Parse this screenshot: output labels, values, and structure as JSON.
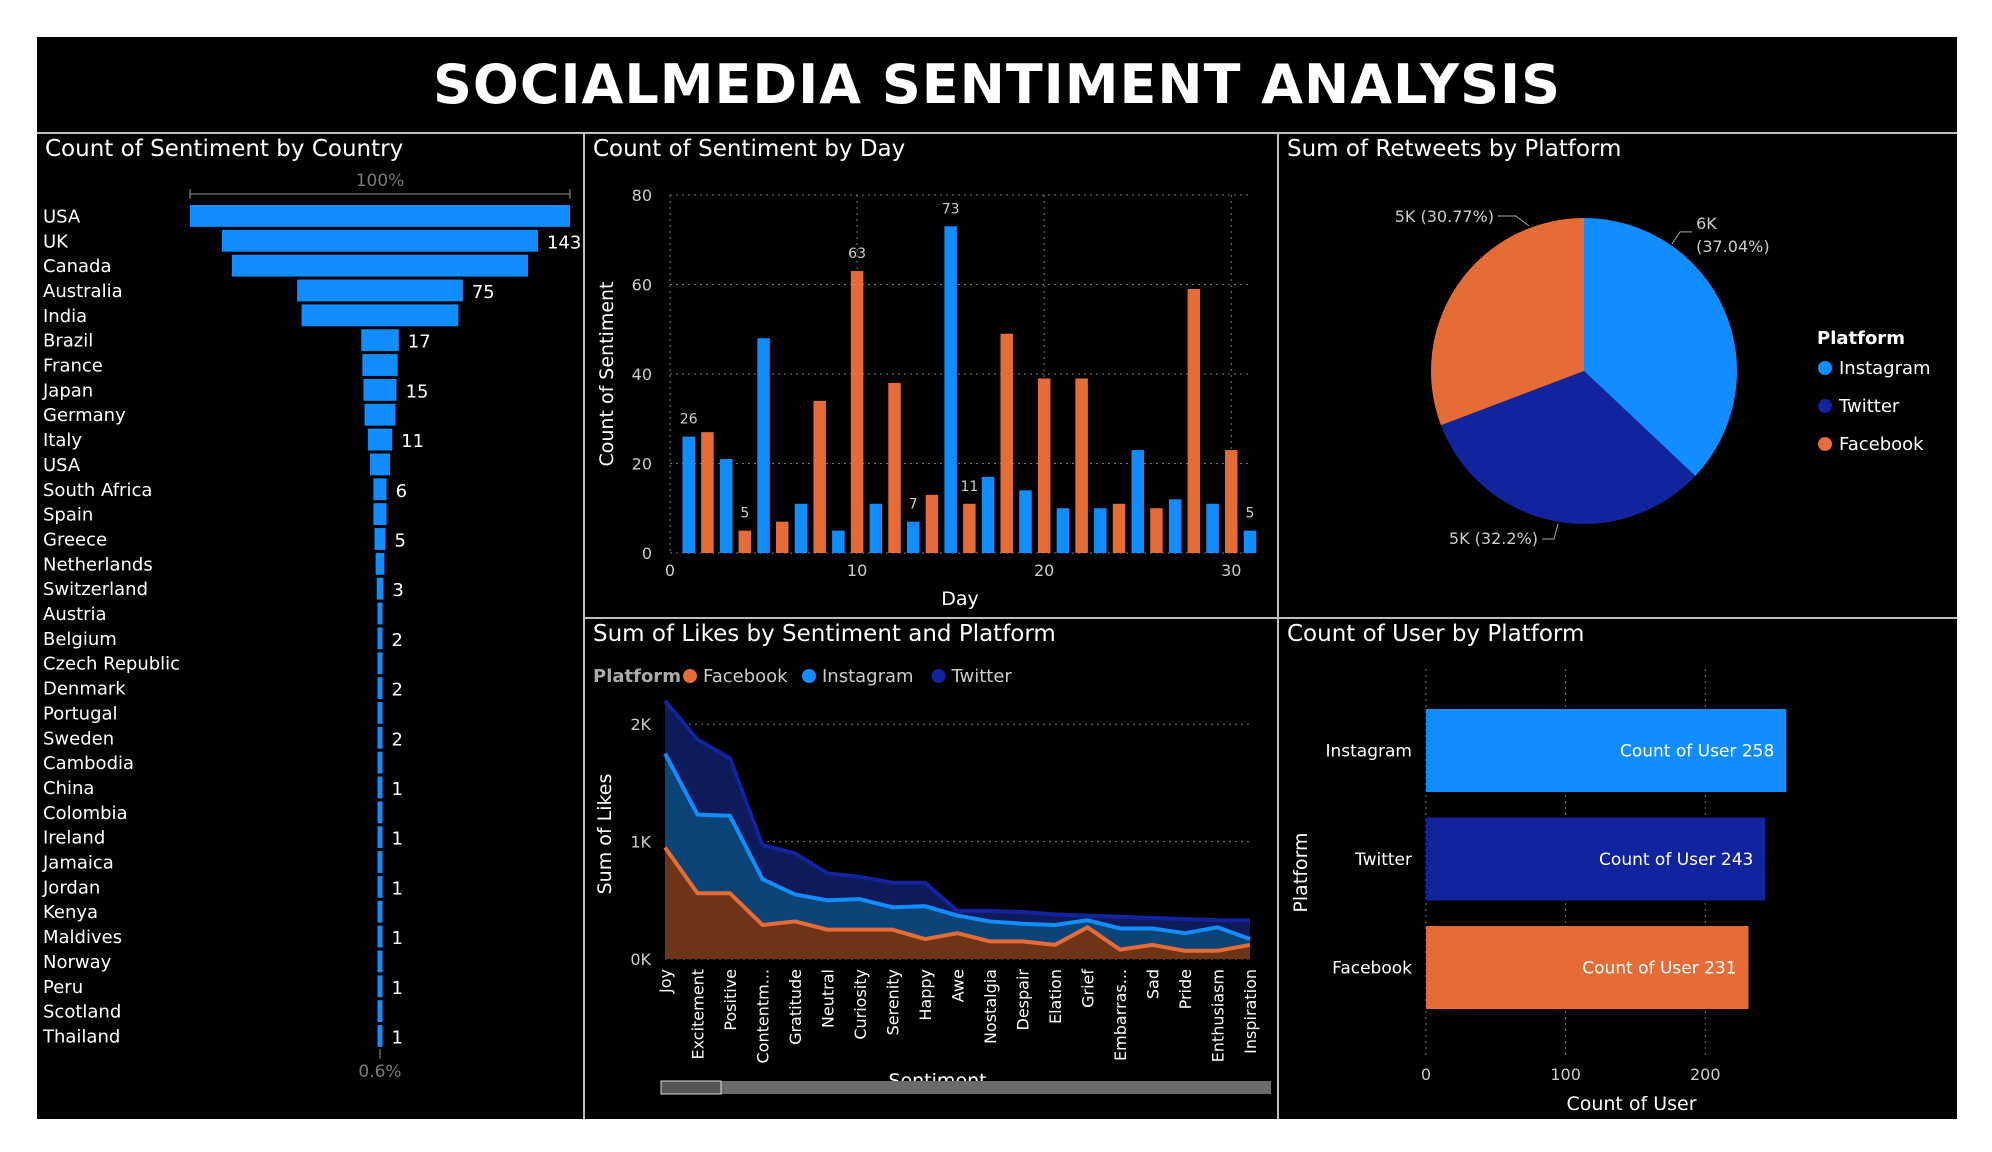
{
  "dashboard": {
    "title": "SOCIALMEDIA SENTIMENT ANALYSIS"
  },
  "colors": {
    "instagram": "#118DFF",
    "twitter": "#12239E",
    "facebook": "#E66C37",
    "background": "#000000",
    "text": "#FFFFFF",
    "grid": "#777777"
  },
  "chart_data": [
    {
      "id": "country",
      "type": "bar",
      "orientation": "horizontal-funnel",
      "title": "Count of Sentiment by Country",
      "top_label": "100%",
      "bottom_label": "0.6%",
      "categories": [
        "USA",
        "UK",
        "Canada",
        "Australia",
        "India",
        "Brazil",
        "France",
        "Japan",
        "Germany",
        "Italy",
        "USA",
        "South Africa",
        "Spain",
        "Greece",
        "Netherlands",
        "Switzerland",
        "Austria",
        "Belgium",
        "Czech Republic",
        "Denmark",
        "Portugal",
        "Sweden",
        "Cambodia",
        "China",
        "Colombia",
        "Ireland",
        "Jamaica",
        "Jordan",
        "Kenya",
        "Maldives",
        "Norway",
        "Peru",
        "Scotland",
        "Thailand"
      ],
      "values": [
        172,
        143,
        134,
        75,
        71,
        17,
        16,
        15,
        14,
        11,
        9,
        6,
        6,
        5,
        4,
        3,
        2,
        2,
        2,
        2,
        2,
        2,
        1,
        1,
        1,
        1,
        1,
        1,
        1,
        1,
        1,
        1,
        1,
        1
      ],
      "data_labels": [
        "",
        "143",
        "",
        "75",
        "",
        "17",
        "",
        "15",
        "",
        "11",
        "",
        "6",
        "",
        "5",
        "",
        "3",
        "",
        "2",
        "",
        "2",
        "",
        "2",
        "",
        "1",
        "",
        "1",
        "",
        "1",
        "",
        "1",
        "",
        "1",
        "",
        "1"
      ],
      "color": "#118DFF"
    },
    {
      "id": "day",
      "type": "bar",
      "title": "Count of Sentiment by Day",
      "xlabel": "Day",
      "ylabel": "Count of Sentiment",
      "xlim": [
        0,
        31
      ],
      "ylim": [
        0,
        80
      ],
      "xticks": [
        0,
        10,
        20,
        30
      ],
      "yticks": [
        0,
        20,
        40,
        60,
        80
      ],
      "grid": true,
      "x": [
        1,
        2,
        3,
        4,
        5,
        6,
        7,
        8,
        9,
        10,
        11,
        12,
        13,
        14,
        15,
        16,
        17,
        18,
        19,
        20,
        21,
        22,
        23,
        24,
        25,
        26,
        27,
        28,
        29,
        30,
        31
      ],
      "values": [
        26,
        27,
        21,
        5,
        48,
        7,
        11,
        34,
        5,
        63,
        11,
        38,
        7,
        13,
        73,
        11,
        17,
        49,
        14,
        39,
        10,
        39,
        10,
        11,
        23,
        10,
        12,
        59,
        11,
        23,
        5
      ],
      "platforms": [
        "Instagram",
        "Facebook",
        "Instagram",
        "Facebook",
        "Instagram",
        "Facebook",
        "Instagram",
        "Facebook",
        "Instagram",
        "Facebook",
        "Instagram",
        "Facebook",
        "Instagram",
        "Facebook",
        "Instagram",
        "Facebook",
        "Instagram",
        "Facebook",
        "Instagram",
        "Facebook",
        "Instagram",
        "Facebook",
        "Instagram",
        "Facebook",
        "Instagram",
        "Facebook",
        "Instagram",
        "Facebook",
        "Instagram",
        "Facebook",
        "Instagram"
      ],
      "data_labels": {
        "1": "26",
        "4": "5",
        "10": "63",
        "13": "7",
        "15": "73",
        "16": "11",
        "31": "5"
      }
    },
    {
      "id": "retweets",
      "type": "pie",
      "title": "Sum of Retweets by Platform",
      "legend_title": "Platform",
      "legend_position": "right",
      "slices": [
        {
          "name": "Instagram",
          "value": 6,
          "percent": 37.04,
          "label": "6K",
          "sublabel": "(37.04%)",
          "color": "#118DFF"
        },
        {
          "name": "Twitter",
          "value": 5,
          "percent": 32.2,
          "label": "5K (32.2%)",
          "color": "#12239E"
        },
        {
          "name": "Facebook",
          "value": 5,
          "percent": 30.77,
          "label": "5K (30.77%)",
          "color": "#E66C37"
        }
      ]
    },
    {
      "id": "likes",
      "type": "area",
      "title": "Sum of Likes by Sentiment and Platform",
      "legend_title": "Platform",
      "legend_position": "top-left",
      "xlabel": "Sentiment",
      "ylabel": "Sum of Likes",
      "ylim": [
        0,
        2300
      ],
      "yticks": [
        0,
        1000,
        2000
      ],
      "ytick_labels": [
        "0K",
        "1K",
        "2K"
      ],
      "grid": true,
      "categories": [
        "Joy",
        "Excitement",
        "Positive",
        "Contentm...",
        "Gratitude",
        "Neutral",
        "Curiosity",
        "Serenity",
        "Happy",
        "Awe",
        "Nostalgia",
        "Despair",
        "Elation",
        "Grief",
        "Embarras...",
        "Sad",
        "Pride",
        "Enthusiasm",
        "Inspiration"
      ],
      "series": [
        {
          "name": "Facebook",
          "color": "#E66C37",
          "values": [
            950,
            560,
            560,
            290,
            320,
            250,
            250,
            250,
            170,
            220,
            150,
            150,
            120,
            270,
            80,
            120,
            70,
            70,
            120
          ]
        },
        {
          "name": "Instagram",
          "color": "#118DFF",
          "values": [
            1750,
            1230,
            1220,
            680,
            550,
            500,
            510,
            440,
            450,
            370,
            320,
            300,
            290,
            330,
            260,
            260,
            220,
            270,
            170
          ]
        },
        {
          "name": "Twitter",
          "color": "#12239E",
          "values": [
            2200,
            1870,
            1710,
            970,
            900,
            730,
            700,
            650,
            650,
            410,
            410,
            400,
            380,
            370,
            360,
            350,
            340,
            330,
            330
          ]
        }
      ]
    },
    {
      "id": "users",
      "type": "bar",
      "orientation": "horizontal",
      "title": "Count of User by Platform",
      "xlabel": "Count of User",
      "ylabel": "Platform",
      "xlim": [
        0,
        280
      ],
      "xticks": [
        0,
        100,
        200
      ],
      "grid": true,
      "categories": [
        "Instagram",
        "Twitter",
        "Facebook"
      ],
      "values": [
        258,
        243,
        231
      ],
      "data_labels": [
        "Count of User 258",
        "Count of User 243",
        "Count of User 231"
      ],
      "colors": [
        "#118DFF",
        "#12239E",
        "#E66C37"
      ]
    }
  ]
}
